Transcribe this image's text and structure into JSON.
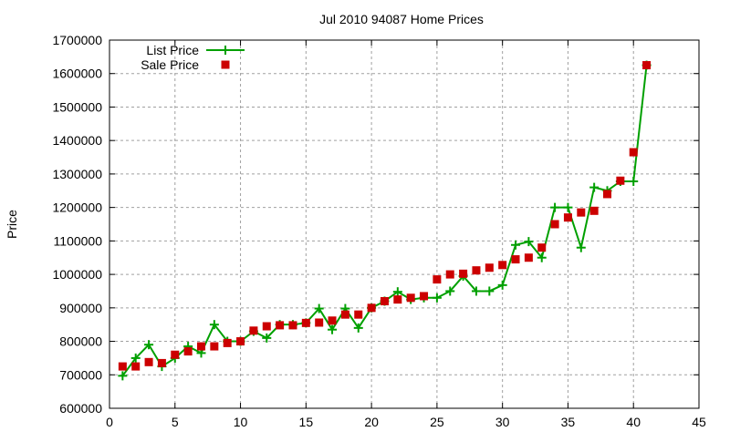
{
  "chart_data": {
    "type": "line",
    "title": "Jul 2010 94087 Home Prices",
    "xlabel": "",
    "ylabel": "Price",
    "xlim": [
      0,
      45
    ],
    "ylim": [
      600000,
      1700000
    ],
    "xticks": [
      0,
      5,
      10,
      15,
      20,
      25,
      30,
      35,
      40,
      45
    ],
    "yticks": [
      600000,
      700000,
      800000,
      900000,
      1000000,
      1100000,
      1200000,
      1300000,
      1400000,
      1500000,
      1600000,
      1700000
    ],
    "grid": true,
    "legend_position": "top-left",
    "x": [
      1,
      2,
      3,
      4,
      5,
      6,
      7,
      8,
      9,
      10,
      11,
      12,
      13,
      14,
      15,
      16,
      17,
      18,
      19,
      20,
      21,
      22,
      23,
      24,
      25,
      26,
      27,
      28,
      29,
      30,
      31,
      32,
      33,
      34,
      35,
      36,
      37,
      38,
      39,
      40,
      41
    ],
    "series": [
      {
        "name": "List Price",
        "style": "linespoints",
        "color": "#00a000",
        "values": [
          697000,
          750000,
          790000,
          725000,
          750000,
          785000,
          765000,
          850000,
          800000,
          800000,
          830000,
          810000,
          850000,
          850000,
          855000,
          898000,
          835000,
          898000,
          840000,
          900000,
          920000,
          948000,
          925000,
          930000,
          930000,
          950000,
          995000,
          950000,
          950000,
          968000,
          1088000,
          1098000,
          1050000,
          1200000,
          1200000,
          1080000,
          1260000,
          1250000,
          1278000,
          1278000,
          1625000
        ]
      },
      {
        "name": "Sale Price",
        "style": "points",
        "color": "#cc0000",
        "values": [
          725000,
          725000,
          738000,
          735000,
          760000,
          770000,
          785000,
          785000,
          795000,
          800000,
          832000,
          845000,
          848000,
          848000,
          855000,
          856000,
          862000,
          880000,
          880000,
          900000,
          920000,
          925000,
          930000,
          935000,
          985000,
          1000000,
          1002000,
          1012000,
          1020000,
          1028000,
          1045000,
          1050000,
          1080000,
          1150000,
          1170000,
          1185000,
          1190000,
          1240000,
          1280000,
          1365000,
          1625000
        ]
      }
    ]
  }
}
